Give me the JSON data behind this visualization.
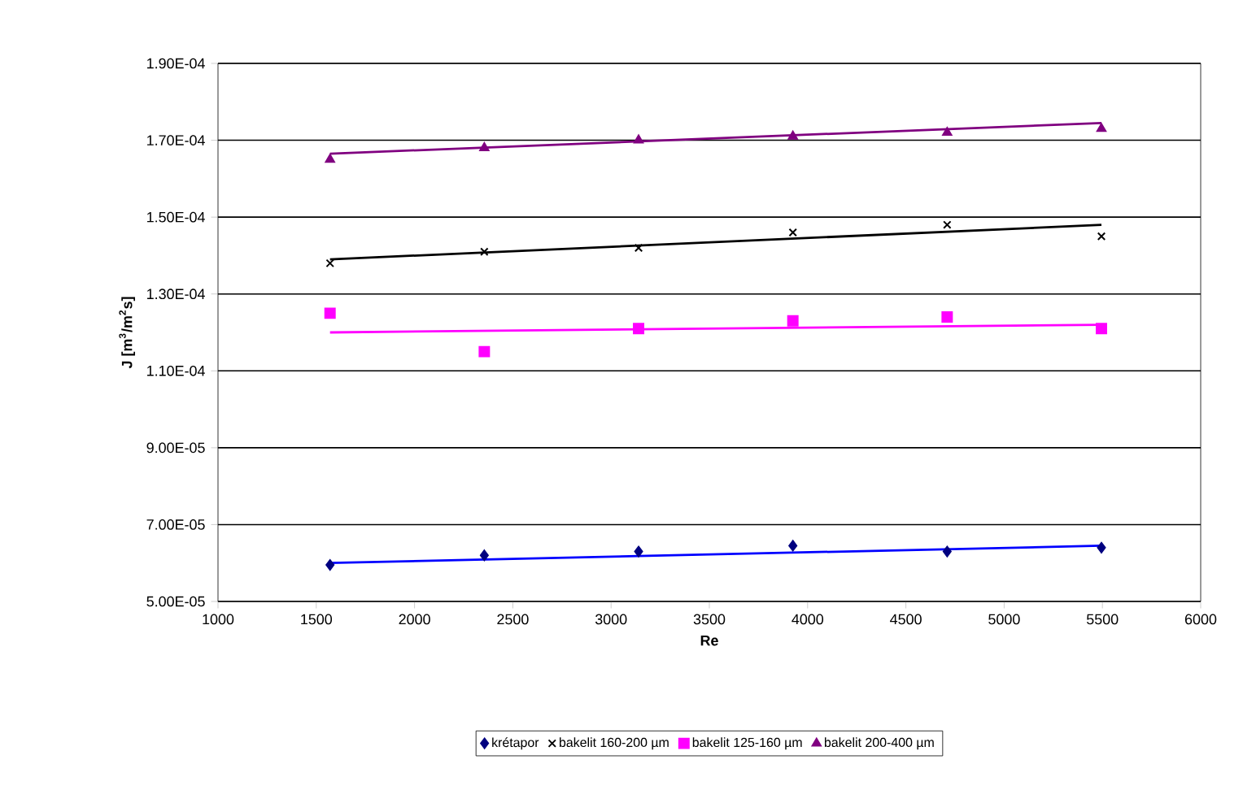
{
  "chart_data": {
    "type": "scatter",
    "xlabel": "Re",
    "ylabel": "J [m$^{3}$/m$^{2}$s]",
    "xlim": [
      1000,
      6000
    ],
    "xticks": [
      1000,
      1500,
      2000,
      2500,
      3000,
      3500,
      4000,
      4500,
      5000,
      5500,
      6000
    ],
    "ylim": [
      5e-05,
      0.00019
    ],
    "yticks": [
      {
        "value": 5e-05,
        "label": "5.00E-05"
      },
      {
        "value": 7e-05,
        "label": "7.00E-05"
      },
      {
        "value": 9e-05,
        "label": "9.00E-05"
      },
      {
        "value": 0.00011,
        "label": "1.10E-04"
      },
      {
        "value": 0.00013,
        "label": "1.30E-04"
      },
      {
        "value": 0.00015,
        "label": "1.50E-04"
      },
      {
        "value": 0.00017,
        "label": "1.70E-04"
      },
      {
        "value": 0.00019,
        "label": "1.90E-04"
      }
    ],
    "grid": "y",
    "legend": "bottom",
    "series": [
      {
        "name": "krétapor",
        "marker": "diamond",
        "color": "#000080",
        "x": [
          1570,
          2355,
          3140,
          3925,
          4710,
          5495
        ],
        "values": [
          5.95e-05,
          6.2e-05,
          6.3e-05,
          6.45e-05,
          6.3e-05,
          6.4e-05
        ]
      },
      {
        "name": "bakelit 160-200 µm",
        "marker": "cross",
        "color": "#000000",
        "x": [
          1570,
          2355,
          3140,
          3925,
          4710,
          5495
        ],
        "values": [
          0.000138,
          0.000141,
          0.000142,
          0.000146,
          0.000148,
          0.000145
        ]
      },
      {
        "name": "bakelit 125-160 µm",
        "marker": "square",
        "color": "#ff00ff",
        "x": [
          1570,
          2355,
          3140,
          3925,
          4710,
          5495
        ],
        "values": [
          0.000125,
          0.000115,
          0.000121,
          0.000123,
          0.000124,
          0.000121
        ]
      },
      {
        "name": "bakelit 200-400 µm",
        "marker": "triangle",
        "color": "#800080",
        "x": [
          1570,
          2355,
          3140,
          3925,
          4710,
          5495
        ],
        "values": [
          0.000165,
          0.000168,
          0.00017,
          0.000171,
          0.000172,
          0.000173
        ]
      },
      {
        "type": "line",
        "color": "#0000ff",
        "x": [
          1570,
          5495
        ],
        "values": [
          6e-05,
          6.45e-05
        ]
      },
      {
        "type": "line",
        "color": "#000000",
        "x": [
          1570,
          5495
        ],
        "values": [
          0.000139,
          0.000148
        ]
      },
      {
        "type": "line",
        "color": "#ff00ff",
        "x": [
          1570,
          5495
        ],
        "values": [
          0.00012,
          0.000122
        ]
      },
      {
        "type": "line",
        "color": "#800080",
        "x": [
          1570,
          5495
        ],
        "values": [
          0.0001665,
          0.0001745
        ]
      }
    ]
  }
}
